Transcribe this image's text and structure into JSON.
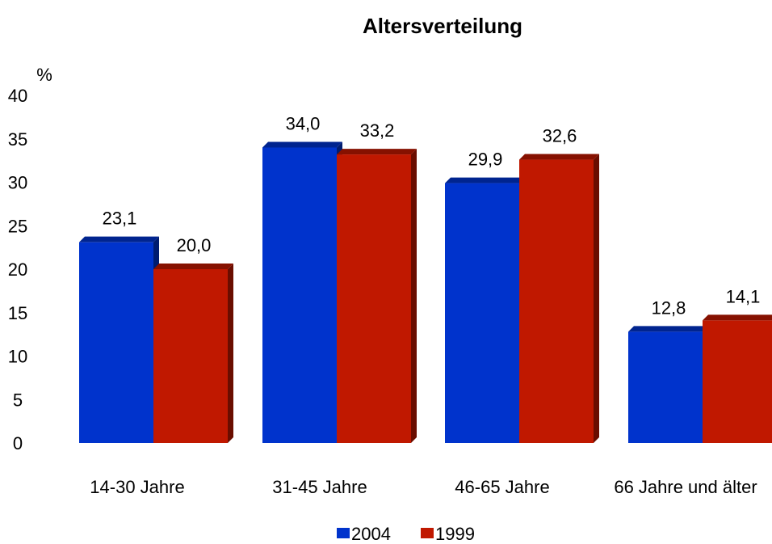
{
  "chart_data": {
    "type": "bar",
    "title": "Altersverteilung",
    "ylabel": "%",
    "ylim": [
      0,
      40
    ],
    "yticks": [
      0,
      5,
      10,
      15,
      20,
      25,
      30,
      35,
      40
    ],
    "grid": false,
    "legend_position": "bottom",
    "categories": [
      "14-30 Jahre",
      "31-45 Jahre",
      "46-65 Jahre",
      "66 Jahre und älter"
    ],
    "series": [
      {
        "name": "2004",
        "values": [
          23.1,
          34.0,
          29.9,
          12.8
        ],
        "labels": [
          "23,1",
          "34,0",
          "29,9",
          "12,8"
        ],
        "color": "#0033CC"
      },
      {
        "name": "1999",
        "values": [
          20.0,
          33.2,
          32.6,
          14.1
        ],
        "labels": [
          "20,0",
          "33,2",
          "32,6",
          "14,1"
        ],
        "color": "#C01800"
      }
    ]
  }
}
